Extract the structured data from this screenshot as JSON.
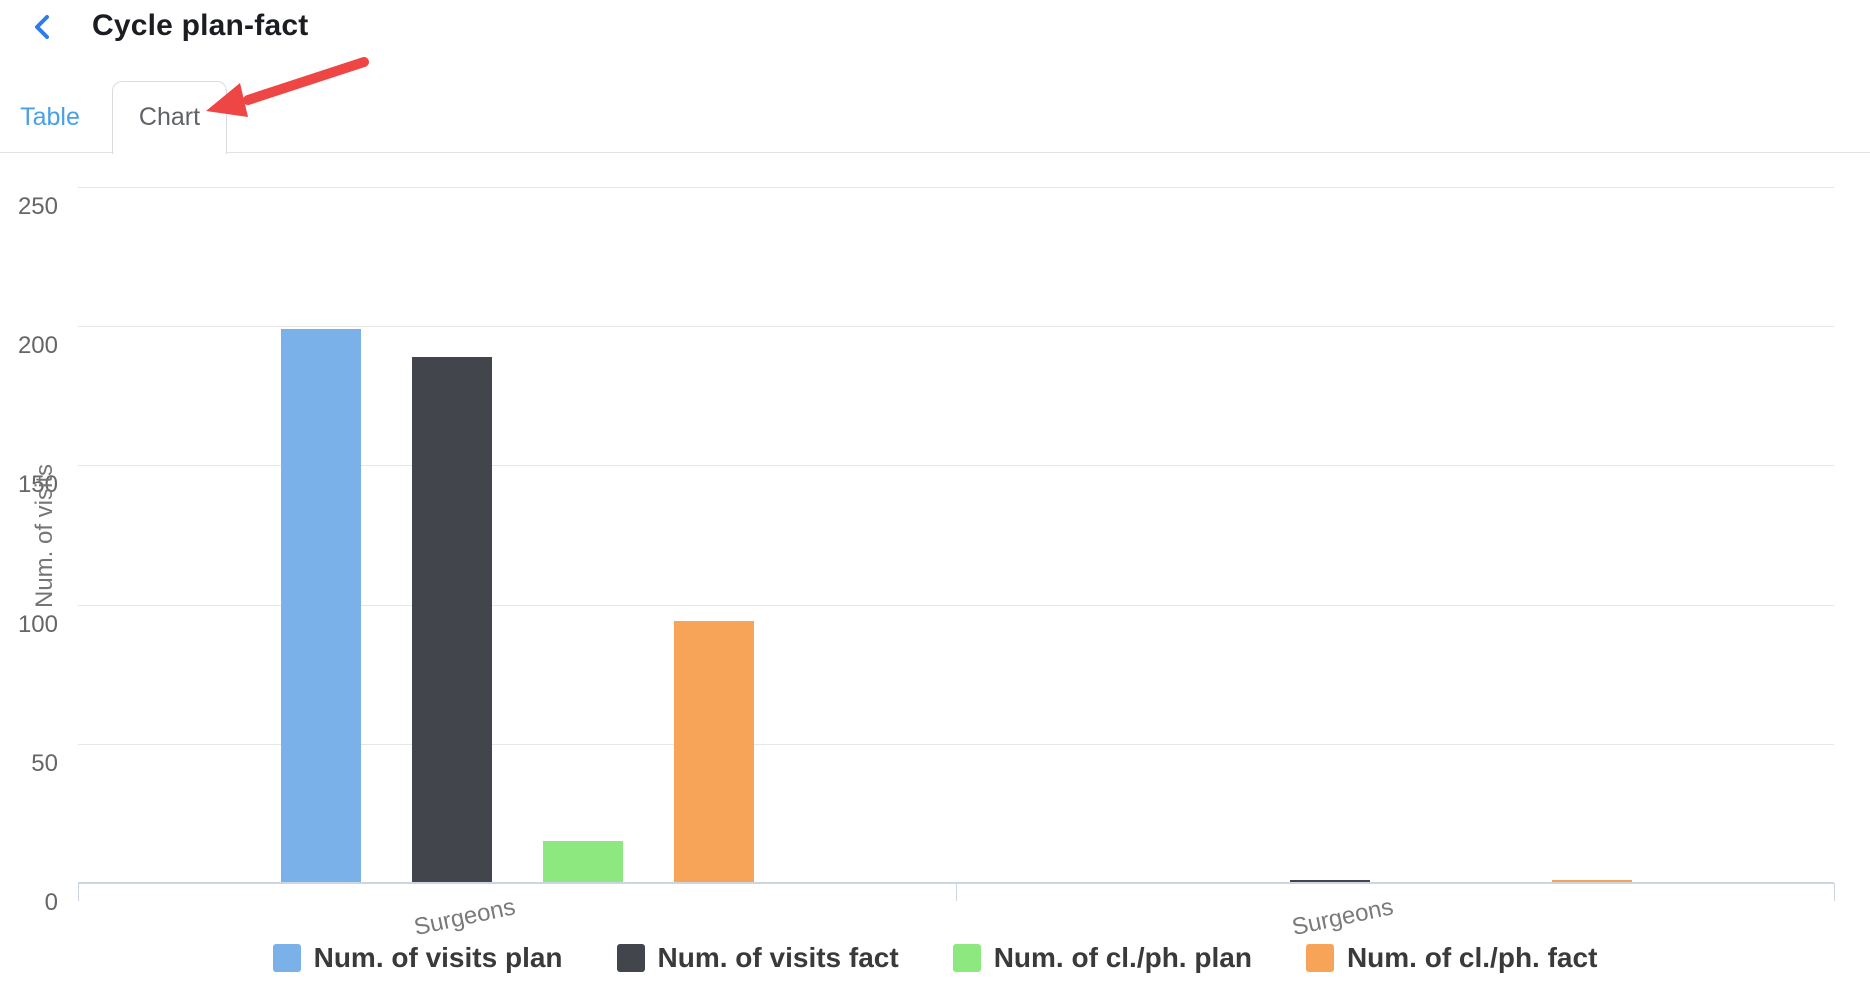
{
  "header": {
    "title": "Cycle plan-fact"
  },
  "tabs": [
    {
      "label": "Table",
      "active": false
    },
    {
      "label": "Chart",
      "active": true
    }
  ],
  "annotation": {
    "arrow_color": "#ee4545"
  },
  "colors": {
    "back_icon_blue": "#2e7ce8",
    "tab_inactive_blue": "#49a0e9",
    "tab_active_gray": "#5f6368",
    "axis_line": "#ccd6e3",
    "gridline": "#e6e6e6",
    "text_muted": "#757575"
  },
  "chart_data": {
    "type": "bar",
    "categories": [
      "Surgeons",
      "Surgeons"
    ],
    "series": [
      {
        "name": "Num. of visits plan",
        "color": "#7ab1e8",
        "values": [
          199,
          0
        ]
      },
      {
        "name": "Num. of visits fact",
        "color": "#42454c",
        "values": [
          189,
          1
        ]
      },
      {
        "name": "Num. of cl./ph. plan",
        "color": "#8ce87f",
        "values": [
          15,
          0
        ]
      },
      {
        "name": "Num. of cl./ph. fact",
        "color": "#f7a459",
        "values": [
          94,
          1
        ]
      }
    ],
    "ylabel": "Num. of visits",
    "xlabel": "",
    "yticks": [
      0,
      50,
      100,
      150,
      200,
      250
    ],
    "ylim": [
      0,
      250
    ],
    "grid": true,
    "legend_position": "bottom"
  }
}
